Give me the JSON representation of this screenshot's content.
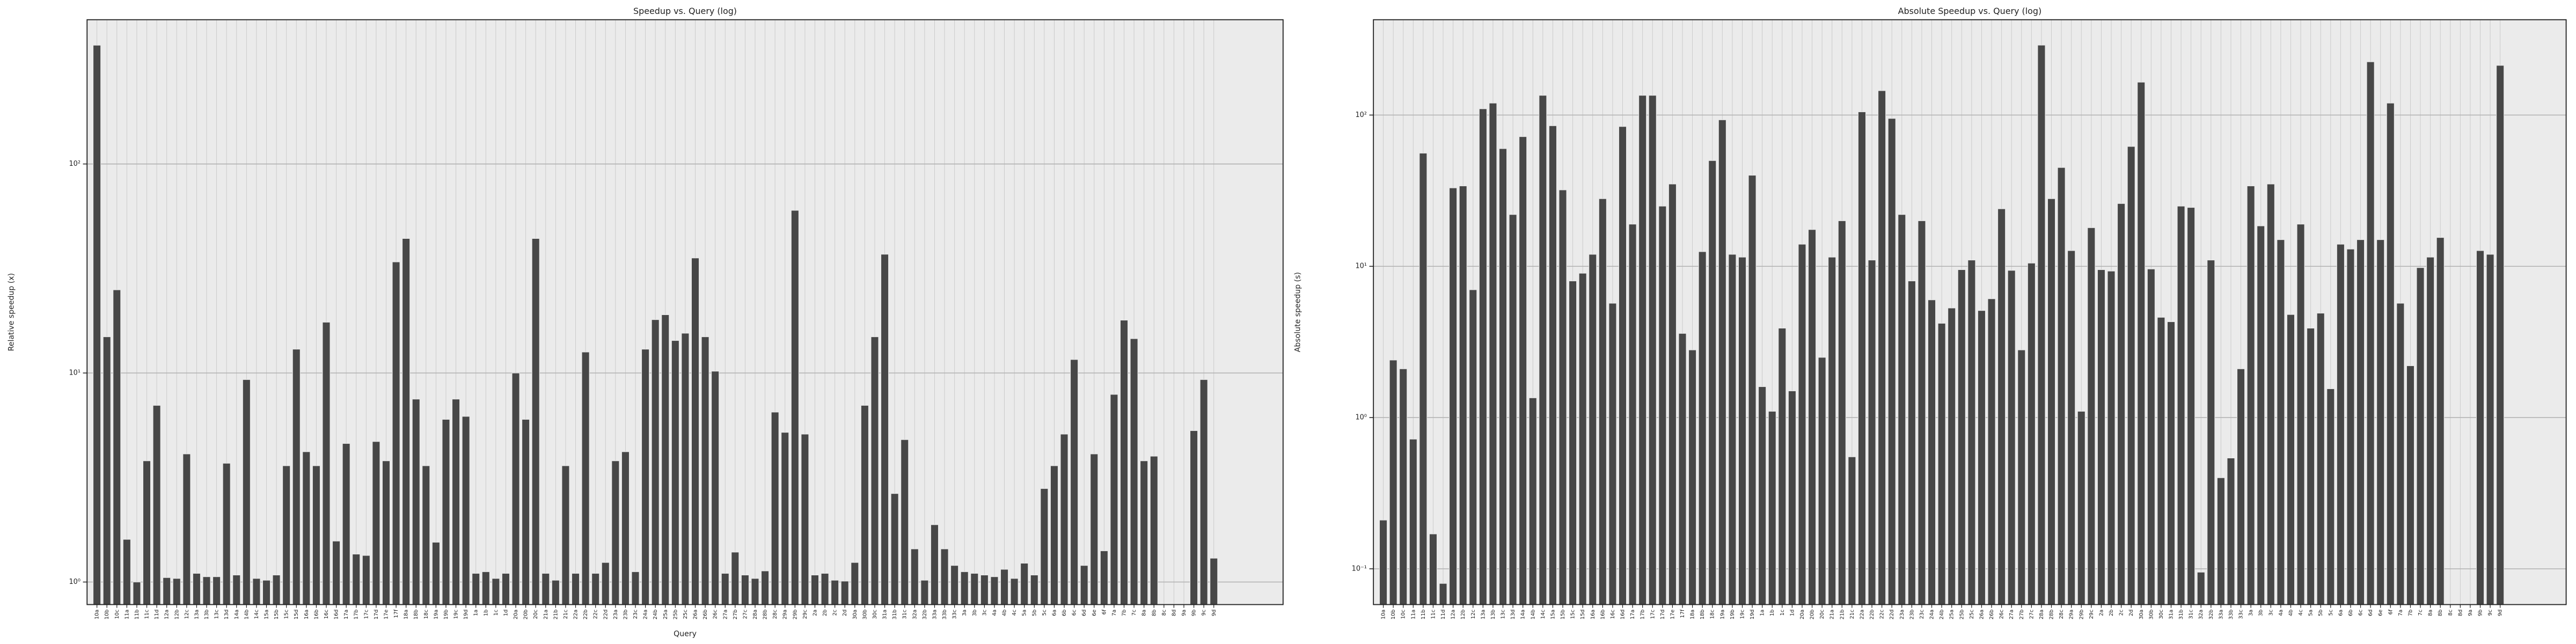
{
  "chart_data": [
    {
      "type": "bar",
      "title": "Speedup vs. Query (log)",
      "xlabel": "Query",
      "ylabel": "Relative speedup (x)",
      "log_scale": true,
      "grid": true,
      "color": "#474747",
      "categories": [
        "10a",
        "10b",
        "10c",
        "11a",
        "11b",
        "11c",
        "11d",
        "12a",
        "12b",
        "12c",
        "13a",
        "13b",
        "13c",
        "13d",
        "14a",
        "14b",
        "14c",
        "15a",
        "15b",
        "15c",
        "15d",
        "16a",
        "16b",
        "16c",
        "16d",
        "17a",
        "17b",
        "17c",
        "17d",
        "17e",
        "17f",
        "18a",
        "18b",
        "18c",
        "19a",
        "19b",
        "19c",
        "19d",
        "1a",
        "1b",
        "1c",
        "1d",
        "20a",
        "20b",
        "20c",
        "21a",
        "21b",
        "21c",
        "22a",
        "22b",
        "22c",
        "22d",
        "23a",
        "23b",
        "23c",
        "24a",
        "24b",
        "25a",
        "25b",
        "25c",
        "26a",
        "26b",
        "26c",
        "27a",
        "27b",
        "27c",
        "28a",
        "28b",
        "28c",
        "29a",
        "29b",
        "29c",
        "2a",
        "2b",
        "2c",
        "2d",
        "30a",
        "30b",
        "30c",
        "31a",
        "31b",
        "31c",
        "32a",
        "32b",
        "33a",
        "33b",
        "33c",
        "3a",
        "3b",
        "3c",
        "4a",
        "4b",
        "4c",
        "5a",
        "5b",
        "5c",
        "6a",
        "6b",
        "6c",
        "6d",
        "6e",
        "6f",
        "7a",
        "7b",
        "7c",
        "8a",
        "8b",
        "8c",
        "8d",
        "9a",
        "9b",
        "9c",
        "9d"
      ],
      "values": [
        370,
        14.9,
        25,
        1.6,
        1.0,
        3.8,
        7,
        1.05,
        1.04,
        4.1,
        1.1,
        1.06,
        1.06,
        3.7,
        1.08,
        9.3,
        1.04,
        1.02,
        1.08,
        3.6,
        13,
        4.2,
        3.6,
        17.5,
        1.57,
        4.6,
        1.36,
        1.34,
        4.7,
        3.8,
        34,
        44,
        7.5,
        3.6,
        1.55,
        6,
        7.5,
        6.2,
        1.1,
        1.12,
        1.04,
        1.1,
        10,
        6,
        44,
        1.1,
        1.02,
        3.6,
        1.1,
        12.6,
        1.1,
        1.24,
        3.8,
        4.2,
        1.12,
        13,
        18,
        19,
        14.3,
        15.5,
        35.5,
        14.9,
        10.2,
        1.1,
        1.39,
        1.08,
        1.04,
        1.13,
        6.5,
        5.2,
        60,
        5.1,
        1.08,
        1.1,
        1.02,
        1.01,
        1.24,
        7,
        14.9,
        37,
        2.65,
        4.8,
        1.44,
        1.02,
        1.88,
        1.44,
        1.2,
        1.12,
        1.1,
        1.08,
        1.06,
        1.15,
        1.04,
        1.23,
        1.08,
        2.8,
        3.6,
        5.1,
        11.6,
        1.2,
        4.1,
        1.41,
        7.9,
        17.9,
        14.6,
        3.8,
        4,
        null,
        null,
        null,
        5.3,
        9.3,
        1.3
      ],
      "ylim": [
        0.78,
        490
      ],
      "yticks": [
        {
          "value": 1,
          "label": "10⁰"
        },
        {
          "value": 10,
          "label": "10¹"
        },
        {
          "value": 100,
          "label": "10²"
        }
      ]
    },
    {
      "type": "bar",
      "title": "Absolute Speedup vs. Query (log)",
      "ylabel": "Absolute speedup (s)",
      "log_scale": true,
      "grid": true,
      "color": "#474747",
      "categories": [
        "10a",
        "10b",
        "10c",
        "11a",
        "11b",
        "11c",
        "11d",
        "12a",
        "12b",
        "12c",
        "13a",
        "13b",
        "13c",
        "13d",
        "14a",
        "14b",
        "14c",
        "15a",
        "15b",
        "15c",
        "15d",
        "16a",
        "16b",
        "16c",
        "16d",
        "17a",
        "17b",
        "17c",
        "17d",
        "17e",
        "17f",
        "18a",
        "18b",
        "18c",
        "19a",
        "19b",
        "19c",
        "19d",
        "1a",
        "1b",
        "1c",
        "1d",
        "20a",
        "20b",
        "20c",
        "21a",
        "21b",
        "21c",
        "22a",
        "22b",
        "22c",
        "22d",
        "23a",
        "23b",
        "23c",
        "24a",
        "24b",
        "25a",
        "25b",
        "25c",
        "26a",
        "26b",
        "26c",
        "27a",
        "27b",
        "27c",
        "28a",
        "28b",
        "28c",
        "29a",
        "29b",
        "29c",
        "2a",
        "2b",
        "2c",
        "2d",
        "30a",
        "30b",
        "30c",
        "31a",
        "31b",
        "31c",
        "32a",
        "32b",
        "33a",
        "33b",
        "33c",
        "3a",
        "3b",
        "3c",
        "4a",
        "4b",
        "4c",
        "5a",
        "5b",
        "5c",
        "6a",
        "6b",
        "6c",
        "6d",
        "6e",
        "6f",
        "7a",
        "7b",
        "7c",
        "8a",
        "8b",
        "8c",
        "8d",
        "9a",
        "9b",
        "9c",
        "9d"
      ],
      "values": [
        0.21,
        2.4,
        2.1,
        0.72,
        56,
        0.17,
        0.08,
        33,
        34,
        7,
        110,
        120,
        60,
        22,
        72,
        1.35,
        135,
        85,
        32,
        8,
        9,
        12,
        28,
        5.7,
        84,
        19,
        135,
        135,
        25,
        35,
        3.6,
        2.8,
        12.5,
        50,
        93,
        12,
        11.5,
        40,
        1.6,
        1.1,
        3.9,
        1.5,
        14,
        17.5,
        2.5,
        11.5,
        20,
        0.55,
        105,
        11,
        145,
        95,
        22,
        8,
        20,
        6,
        4.2,
        5.3,
        9.5,
        11,
        5.1,
        6.1,
        24,
        9.4,
        2.8,
        10.5,
        290,
        28,
        45,
        12.7,
        1.1,
        18,
        9.5,
        9.3,
        26,
        62,
        165,
        9.6,
        4.6,
        4.3,
        25,
        24.5,
        0.095,
        11,
        0.4,
        0.54,
        2.1,
        34,
        18.5,
        35,
        15,
        4.8,
        19,
        3.9,
        4.9,
        1.55,
        14,
        13,
        15,
        225,
        15,
        120,
        5.7,
        2.2,
        9.8,
        11.5,
        15.5,
        null,
        null,
        null,
        12.7,
        12,
        213
      ],
      "ylim": [
        0.058,
        427
      ],
      "yticks": [
        {
          "value": 0.1,
          "label": "10⁻¹"
        },
        {
          "value": 1,
          "label": "10⁰"
        },
        {
          "value": 10,
          "label": "10¹"
        },
        {
          "value": 100,
          "label": "10²"
        }
      ]
    }
  ]
}
